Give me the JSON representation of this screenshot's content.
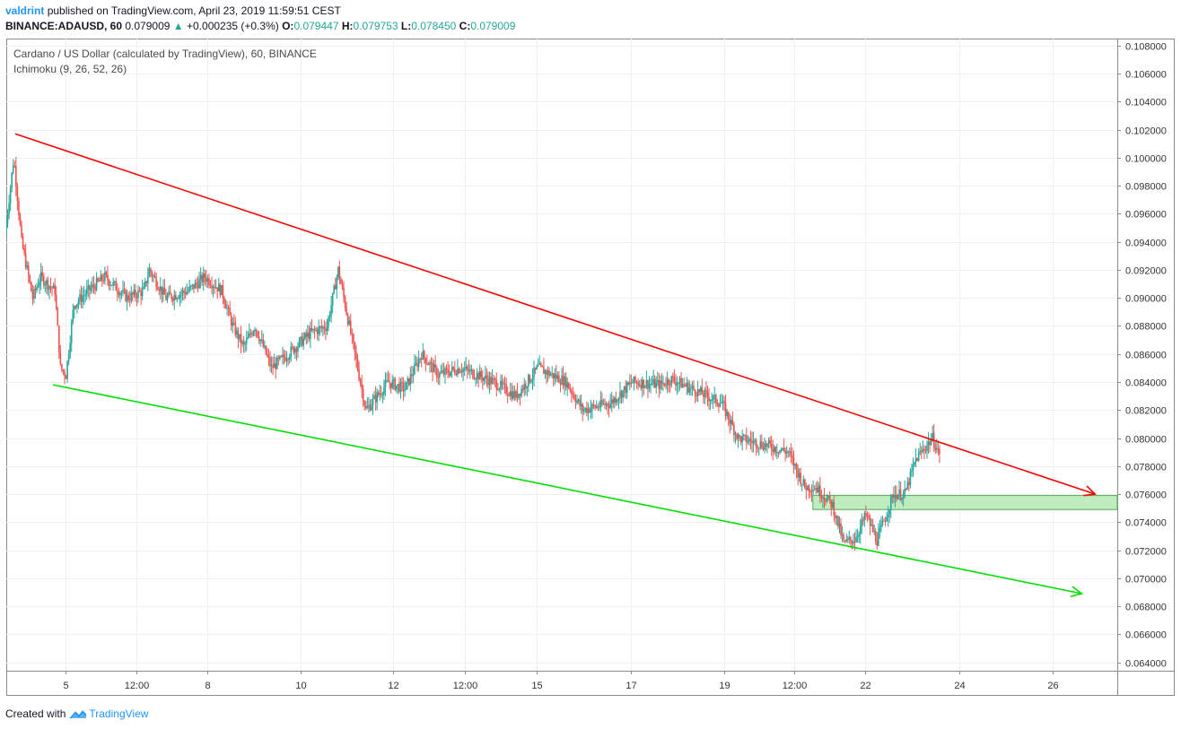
{
  "header": {
    "author": "valdrint",
    "published": "published on TradingView.com, April 23, 2019 11:59:51 CEST",
    "symbol": "BINANCE:ADAUSD, 60",
    "last": "0.079009",
    "change": "+0.000235 (+0.3%)",
    "o_label": "O:",
    "o_value": "0.079447",
    "h_label": "H:",
    "h_value": "0.079753",
    "l_label": "L:",
    "l_value": "0.078450",
    "c_label": "C:",
    "c_value": "0.079009"
  },
  "chart_title": "Cardano / US Dollar (calculated by TradingView), 60, BINANCE",
  "indicator": "Ichimoku (9, 26, 52, 26)",
  "footer": {
    "created_with": "Created with",
    "brand": "TradingView"
  },
  "colors": {
    "up": "#26a69a",
    "down": "#ef5350",
    "resistance": "#ff0000",
    "support": "#00e000",
    "zone": "#a5e6a5"
  },
  "chart_data": {
    "type": "candlestick",
    "y_range": [
      0.0634,
      0.1085
    ],
    "y_ticks": [
      "0.108000",
      "0.106000",
      "0.104000",
      "0.102000",
      "0.100000",
      "0.098000",
      "0.096000",
      "0.094000",
      "0.092000",
      "0.090000",
      "0.088000",
      "0.086000",
      "0.084000",
      "0.082000",
      "0.080000",
      "0.078000",
      "0.076000",
      "0.074000",
      "0.072000",
      "0.070000",
      "0.068000",
      "0.066000",
      "0.064000"
    ],
    "x_ticks": [
      "5",
      "12:00",
      "8",
      "10",
      "12",
      "12:00",
      "15",
      "17",
      "19",
      "12:00",
      "22",
      "24",
      "26"
    ],
    "price_path": [
      [
        0,
        0.0945
      ],
      [
        0.008,
        0.1
      ],
      [
        0.015,
        0.094
      ],
      [
        0.025,
        0.09
      ],
      [
        0.032,
        0.0915
      ],
      [
        0.045,
        0.0905
      ],
      [
        0.05,
        0.085
      ],
      [
        0.055,
        0.0845
      ],
      [
        0.062,
        0.0895
      ],
      [
        0.075,
        0.0905
      ],
      [
        0.09,
        0.0915
      ],
      [
        0.11,
        0.09
      ],
      [
        0.125,
        0.0905
      ],
      [
        0.13,
        0.092
      ],
      [
        0.145,
        0.09
      ],
      [
        0.165,
        0.0905
      ],
      [
        0.18,
        0.0915
      ],
      [
        0.195,
        0.0905
      ],
      [
        0.205,
        0.088
      ],
      [
        0.215,
        0.0865
      ],
      [
        0.225,
        0.088
      ],
      [
        0.24,
        0.085
      ],
      [
        0.255,
        0.086
      ],
      [
        0.275,
        0.0875
      ],
      [
        0.29,
        0.088
      ],
      [
        0.3,
        0.092
      ],
      [
        0.31,
        0.088
      ],
      [
        0.325,
        0.082
      ],
      [
        0.345,
        0.084
      ],
      [
        0.36,
        0.0835
      ],
      [
        0.375,
        0.086
      ],
      [
        0.39,
        0.0845
      ],
      [
        0.41,
        0.085
      ],
      [
        0.44,
        0.084
      ],
      [
        0.46,
        0.083
      ],
      [
        0.48,
        0.085
      ],
      [
        0.505,
        0.084
      ],
      [
        0.52,
        0.082
      ],
      [
        0.545,
        0.0825
      ],
      [
        0.565,
        0.084
      ],
      [
        0.59,
        0.0838
      ],
      [
        0.6,
        0.0842
      ],
      [
        0.645,
        0.0825
      ],
      [
        0.66,
        0.08
      ],
      [
        0.685,
        0.0795
      ],
      [
        0.705,
        0.079
      ],
      [
        0.72,
        0.0765
      ],
      [
        0.73,
        0.0765
      ],
      [
        0.745,
        0.0752
      ],
      [
        0.755,
        0.0725
      ],
      [
        0.765,
        0.0728
      ],
      [
        0.775,
        0.0745
      ],
      [
        0.785,
        0.0727
      ],
      [
        0.8,
        0.076
      ],
      [
        0.81,
        0.076
      ],
      [
        0.82,
        0.0785
      ],
      [
        0.835,
        0.08
      ],
      [
        0.84,
        0.079
      ]
    ],
    "resistance_line": {
      "start": [
        0.008,
        0.1017
      ],
      "end": [
        0.98,
        0.076
      ]
    },
    "support_line": {
      "start": [
        0.042,
        0.0838
      ],
      "end": [
        0.968,
        0.0689
      ]
    },
    "zone": {
      "x_start": 0.726,
      "x_end": 1.0,
      "y_low": 0.0749,
      "y_high": 0.0759
    }
  }
}
